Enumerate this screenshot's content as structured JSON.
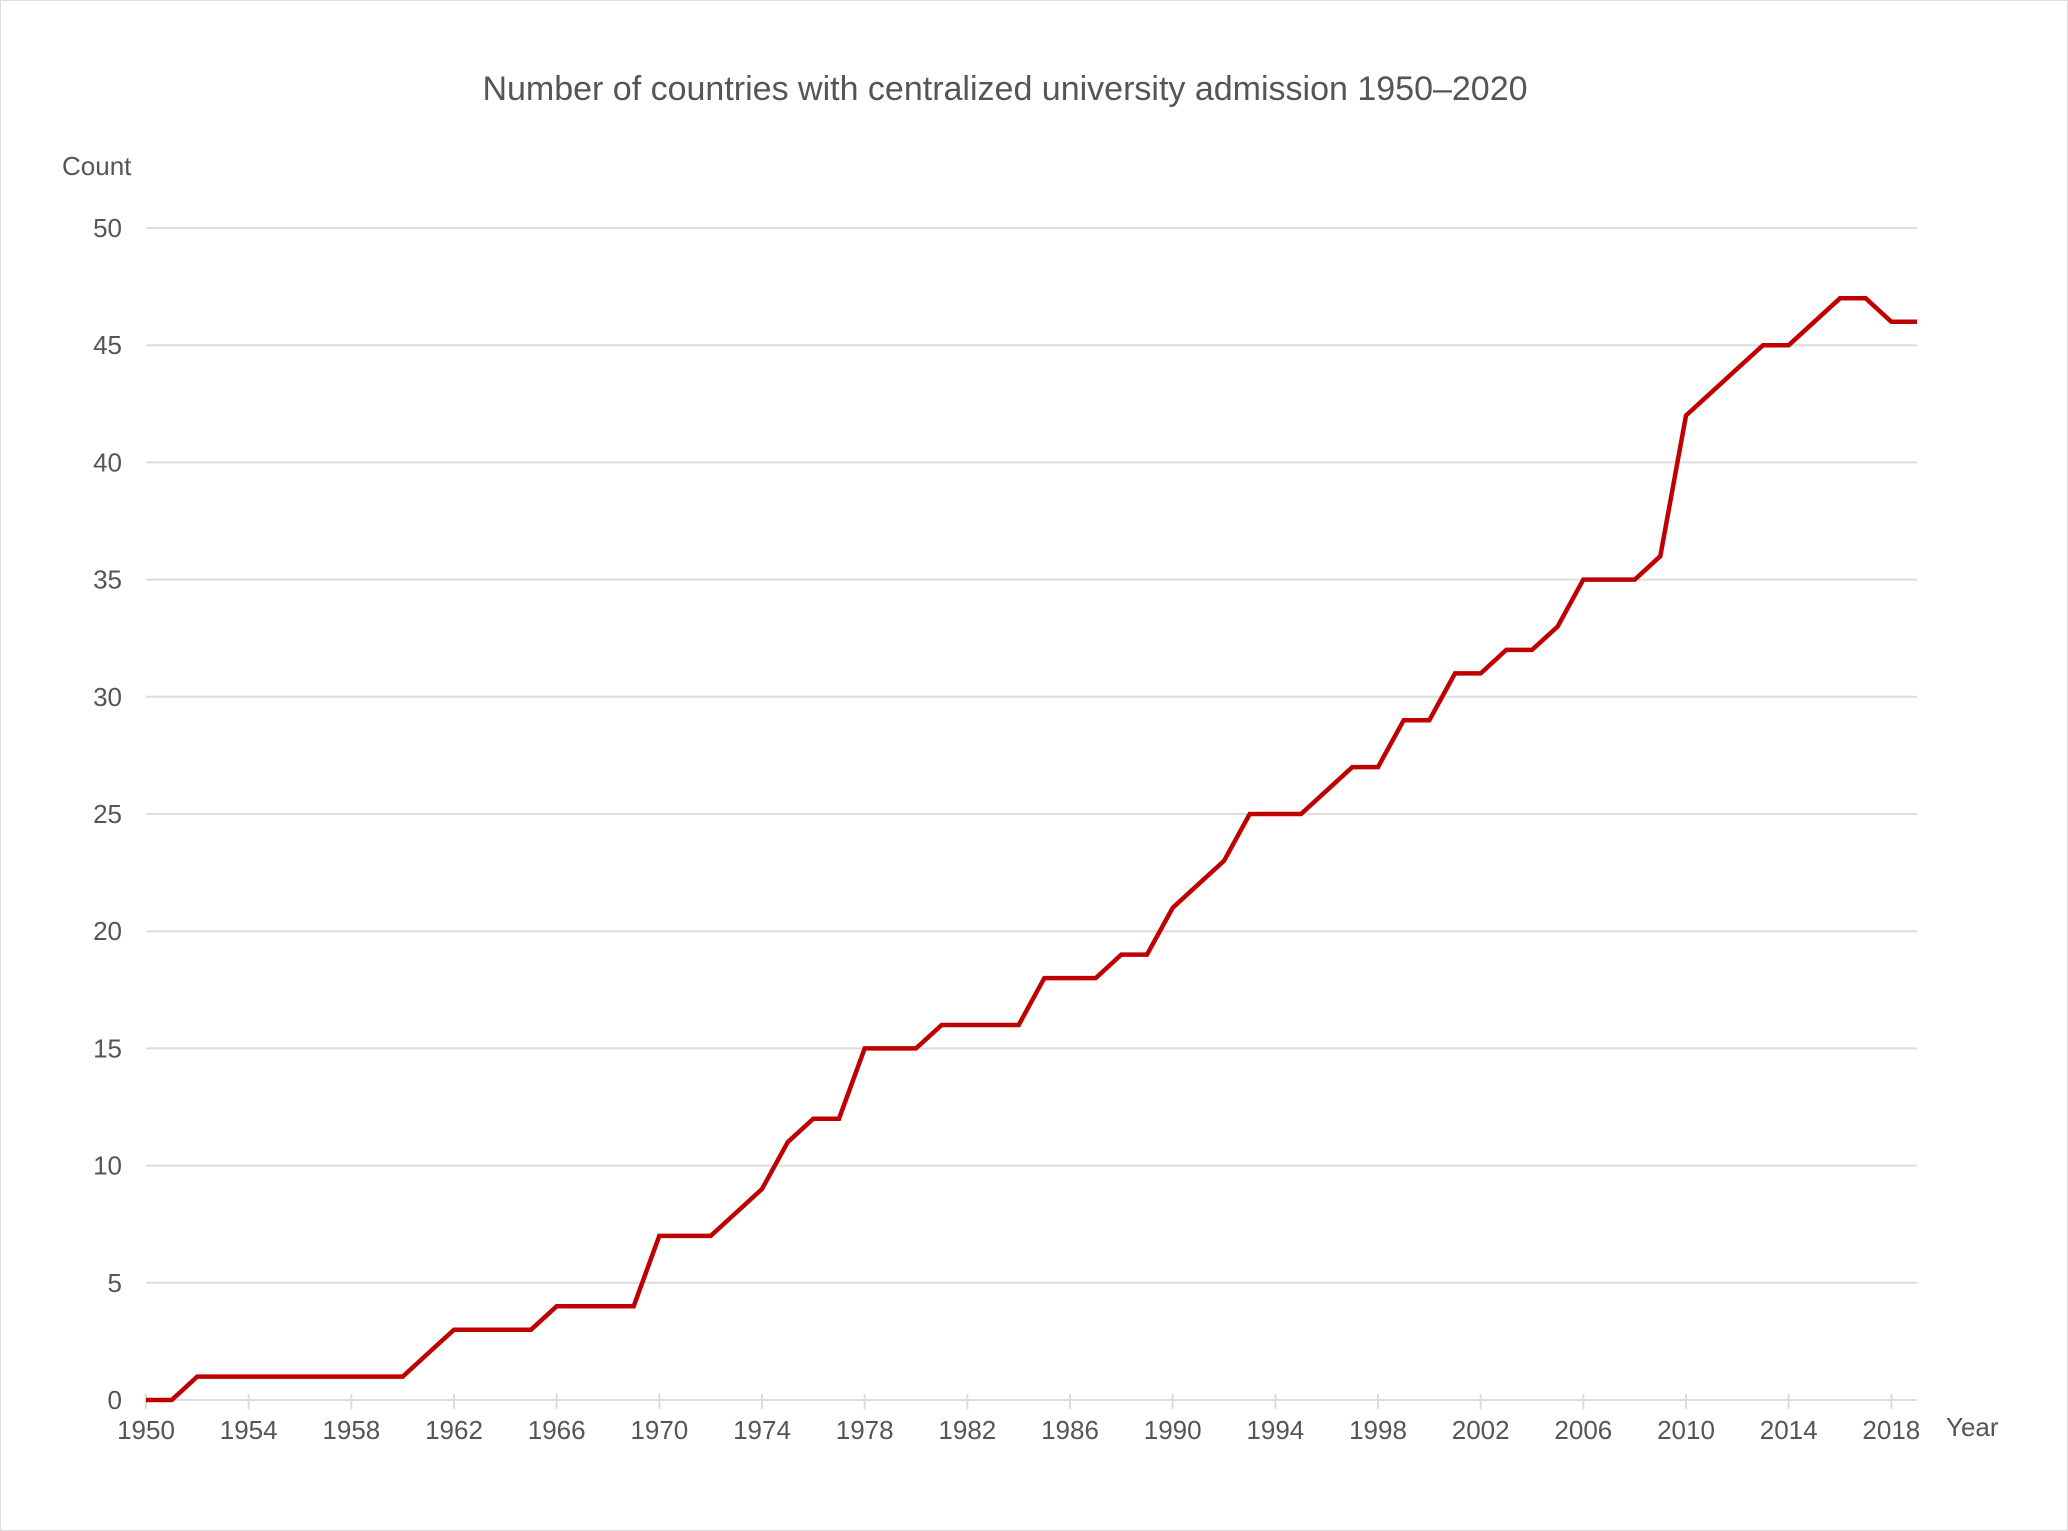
{
  "chart_data": {
    "type": "line",
    "title": "Number of countries with centralized university admission 1950–2020",
    "xlabel": "Year",
    "ylabel": "Count",
    "xlim": [
      1950,
      2019
    ],
    "ylim": [
      0,
      50
    ],
    "grid": true,
    "legend": "none",
    "y_ticks": [
      0,
      5,
      10,
      15,
      20,
      25,
      30,
      35,
      40,
      45,
      50
    ],
    "x_ticks": [
      1950,
      1954,
      1958,
      1962,
      1966,
      1970,
      1974,
      1978,
      1982,
      1986,
      1990,
      1994,
      1998,
      2002,
      2006,
      2010,
      2014,
      2018
    ],
    "x": [
      1950,
      1951,
      1952,
      1953,
      1954,
      1955,
      1956,
      1957,
      1958,
      1959,
      1960,
      1961,
      1962,
      1963,
      1964,
      1965,
      1966,
      1967,
      1968,
      1969,
      1970,
      1971,
      1972,
      1973,
      1974,
      1975,
      1976,
      1977,
      1978,
      1979,
      1980,
      1981,
      1982,
      1983,
      1984,
      1985,
      1986,
      1987,
      1988,
      1989,
      1990,
      1991,
      1992,
      1993,
      1994,
      1995,
      1996,
      1997,
      1998,
      1999,
      2000,
      2001,
      2002,
      2003,
      2004,
      2005,
      2006,
      2007,
      2008,
      2009,
      2010,
      2011,
      2012,
      2013,
      2014,
      2015,
      2016,
      2017,
      2018,
      2019
    ],
    "series": [
      {
        "name": "Count",
        "color": "#c00000",
        "values": [
          0,
          0,
          1,
          1,
          1,
          1,
          1,
          1,
          1,
          1,
          1,
          2,
          3,
          3,
          3,
          3,
          4,
          4,
          4,
          4,
          7,
          7,
          7,
          8,
          9,
          11,
          12,
          12,
          15,
          15,
          15,
          16,
          16,
          16,
          16,
          18,
          18,
          18,
          19,
          19,
          21,
          22,
          23,
          25,
          25,
          25,
          26,
          27,
          27,
          29,
          29,
          31,
          31,
          32,
          32,
          33,
          35,
          35,
          35,
          36,
          42,
          43,
          44,
          45,
          45,
          46,
          47,
          47,
          46,
          46
        ]
      }
    ]
  }
}
